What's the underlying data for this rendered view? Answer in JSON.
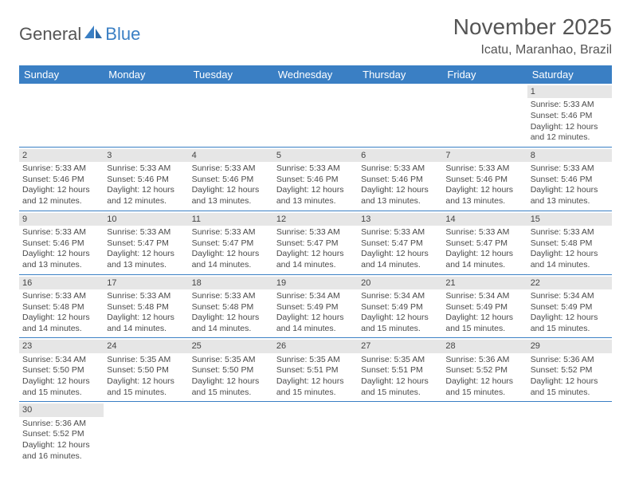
{
  "logo": {
    "part1": "General",
    "part2": "Blue"
  },
  "title": "November 2025",
  "location": "Icatu, Maranhao, Brazil",
  "colors": {
    "primary": "#3a7fc4",
    "dayBarBg": "#e6e6e6",
    "text": "#4a4a4a"
  },
  "weekdays": [
    "Sunday",
    "Monday",
    "Tuesday",
    "Wednesday",
    "Thursday",
    "Friday",
    "Saturday"
  ],
  "days": {
    "1": {
      "sr": "5:33 AM",
      "ss": "5:46 PM",
      "dl": "12 hours and 12 minutes."
    },
    "2": {
      "sr": "5:33 AM",
      "ss": "5:46 PM",
      "dl": "12 hours and 12 minutes."
    },
    "3": {
      "sr": "5:33 AM",
      "ss": "5:46 PM",
      "dl": "12 hours and 12 minutes."
    },
    "4": {
      "sr": "5:33 AM",
      "ss": "5:46 PM",
      "dl": "12 hours and 13 minutes."
    },
    "5": {
      "sr": "5:33 AM",
      "ss": "5:46 PM",
      "dl": "12 hours and 13 minutes."
    },
    "6": {
      "sr": "5:33 AM",
      "ss": "5:46 PM",
      "dl": "12 hours and 13 minutes."
    },
    "7": {
      "sr": "5:33 AM",
      "ss": "5:46 PM",
      "dl": "12 hours and 13 minutes."
    },
    "8": {
      "sr": "5:33 AM",
      "ss": "5:46 PM",
      "dl": "12 hours and 13 minutes."
    },
    "9": {
      "sr": "5:33 AM",
      "ss": "5:46 PM",
      "dl": "12 hours and 13 minutes."
    },
    "10": {
      "sr": "5:33 AM",
      "ss": "5:47 PM",
      "dl": "12 hours and 13 minutes."
    },
    "11": {
      "sr": "5:33 AM",
      "ss": "5:47 PM",
      "dl": "12 hours and 14 minutes."
    },
    "12": {
      "sr": "5:33 AM",
      "ss": "5:47 PM",
      "dl": "12 hours and 14 minutes."
    },
    "13": {
      "sr": "5:33 AM",
      "ss": "5:47 PM",
      "dl": "12 hours and 14 minutes."
    },
    "14": {
      "sr": "5:33 AM",
      "ss": "5:47 PM",
      "dl": "12 hours and 14 minutes."
    },
    "15": {
      "sr": "5:33 AM",
      "ss": "5:48 PM",
      "dl": "12 hours and 14 minutes."
    },
    "16": {
      "sr": "5:33 AM",
      "ss": "5:48 PM",
      "dl": "12 hours and 14 minutes."
    },
    "17": {
      "sr": "5:33 AM",
      "ss": "5:48 PM",
      "dl": "12 hours and 14 minutes."
    },
    "18": {
      "sr": "5:33 AM",
      "ss": "5:48 PM",
      "dl": "12 hours and 14 minutes."
    },
    "19": {
      "sr": "5:34 AM",
      "ss": "5:49 PM",
      "dl": "12 hours and 14 minutes."
    },
    "20": {
      "sr": "5:34 AM",
      "ss": "5:49 PM",
      "dl": "12 hours and 15 minutes."
    },
    "21": {
      "sr": "5:34 AM",
      "ss": "5:49 PM",
      "dl": "12 hours and 15 minutes."
    },
    "22": {
      "sr": "5:34 AM",
      "ss": "5:49 PM",
      "dl": "12 hours and 15 minutes."
    },
    "23": {
      "sr": "5:34 AM",
      "ss": "5:50 PM",
      "dl": "12 hours and 15 minutes."
    },
    "24": {
      "sr": "5:35 AM",
      "ss": "5:50 PM",
      "dl": "12 hours and 15 minutes."
    },
    "25": {
      "sr": "5:35 AM",
      "ss": "5:50 PM",
      "dl": "12 hours and 15 minutes."
    },
    "26": {
      "sr": "5:35 AM",
      "ss": "5:51 PM",
      "dl": "12 hours and 15 minutes."
    },
    "27": {
      "sr": "5:35 AM",
      "ss": "5:51 PM",
      "dl": "12 hours and 15 minutes."
    },
    "28": {
      "sr": "5:36 AM",
      "ss": "5:52 PM",
      "dl": "12 hours and 15 minutes."
    },
    "29": {
      "sr": "5:36 AM",
      "ss": "5:52 PM",
      "dl": "12 hours and 15 minutes."
    },
    "30": {
      "sr": "5:36 AM",
      "ss": "5:52 PM",
      "dl": "12 hours and 16 minutes."
    }
  },
  "labels": {
    "sunrise": "Sunrise:",
    "sunset": "Sunset:",
    "daylight": "Daylight:"
  },
  "grid": [
    [
      null,
      null,
      null,
      null,
      null,
      null,
      "1"
    ],
    [
      "2",
      "3",
      "4",
      "5",
      "6",
      "7",
      "8"
    ],
    [
      "9",
      "10",
      "11",
      "12",
      "13",
      "14",
      "15"
    ],
    [
      "16",
      "17",
      "18",
      "19",
      "20",
      "21",
      "22"
    ],
    [
      "23",
      "24",
      "25",
      "26",
      "27",
      "28",
      "29"
    ],
    [
      "30",
      null,
      null,
      null,
      null,
      null,
      null
    ]
  ]
}
